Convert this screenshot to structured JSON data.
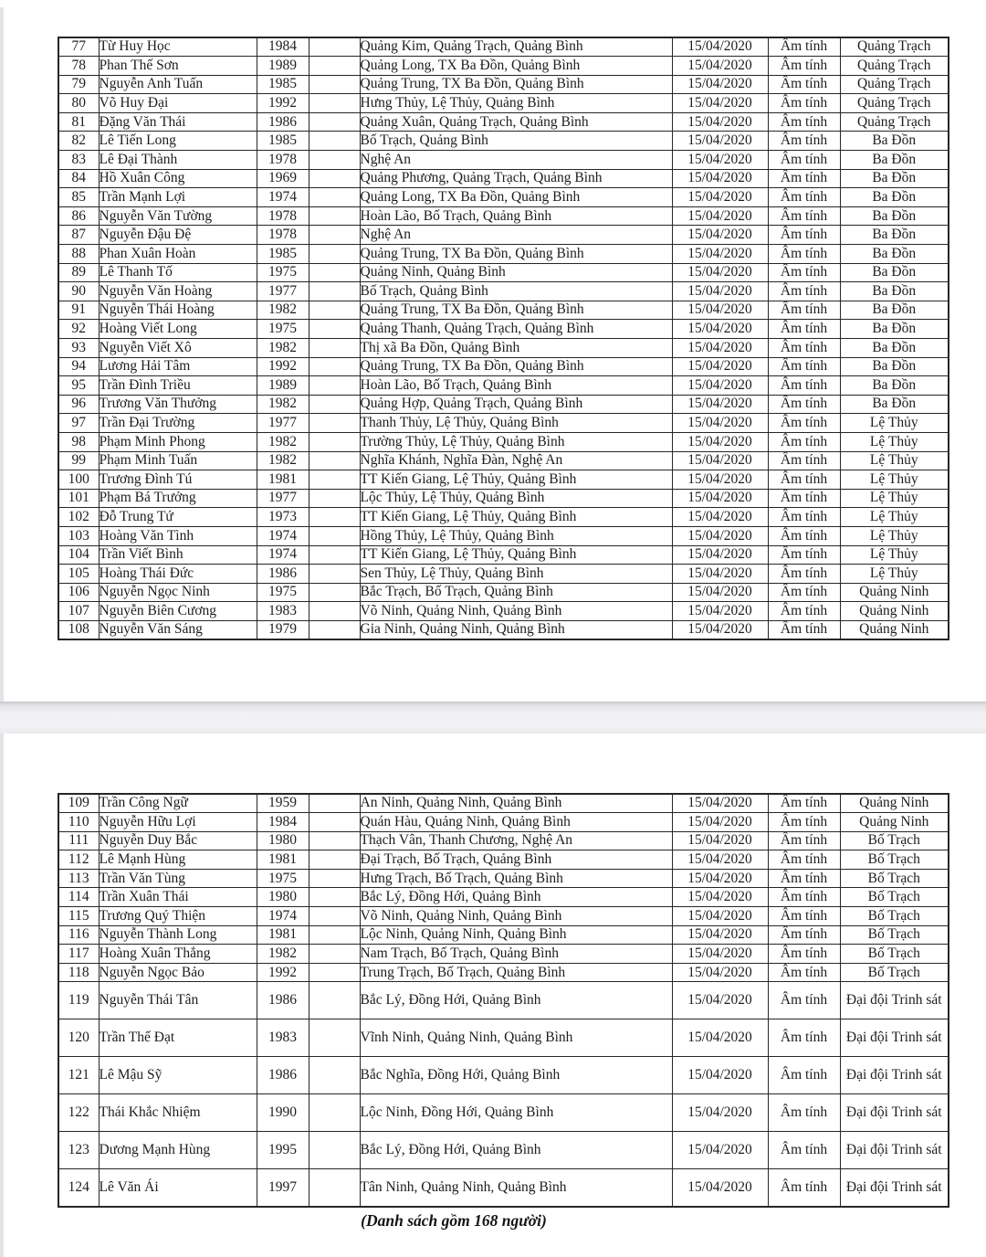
{
  "document": {
    "type": "scanned-roster-table",
    "footer_note": "(Danh sách gồm 168 người)",
    "common": {
      "test_date": "15/04/2020",
      "test_result": "Âm tính"
    },
    "colors": {
      "paper": "#ffffff",
      "ink": "#1d1d1d",
      "border": "#262626",
      "page_break_band": "#f1f1f3"
    }
  },
  "columns": [
    "stt",
    "name",
    "year",
    "empty",
    "address",
    "date",
    "result",
    "unit"
  ],
  "sections": [
    {
      "rows": [
        [
          "77",
          "Từ Huy Học",
          "1984",
          "Quảng Kim, Quảng Trạch, Quảng Bình",
          "15/04/2020",
          "Âm tính",
          "Quảng Trạch",
          false
        ],
        [
          "78",
          "Phan Thế Sơn",
          "1989",
          "Quảng Long, TX Ba Đồn, Quảng Bình",
          "15/04/2020",
          "Âm tính",
          "Quảng Trạch",
          false
        ],
        [
          "79",
          "Nguyễn Anh Tuấn",
          "1985",
          "Quảng Trung, TX Ba Đồn, Quảng Bình",
          "15/04/2020",
          "Âm tính",
          "Quảng Trạch",
          false
        ],
        [
          "80",
          "Võ Huy Đại",
          "1992",
          "Hưng Thủy, Lệ Thủy, Quảng Bình",
          "15/04/2020",
          "Âm tính",
          "Quảng Trạch",
          false
        ],
        [
          "81",
          "Đặng Văn Thái",
          "1986",
          "Quảng Xuân, Quảng Trạch, Quảng Bình",
          "15/04/2020",
          "Âm tính",
          "Quảng Trạch",
          false
        ],
        [
          "82",
          "Lê Tiến Long",
          "1985",
          "Bố Trạch, Quảng Bình",
          "15/04/2020",
          "Âm tính",
          "Ba Đồn",
          false
        ],
        [
          "83",
          "Lê Đại Thành",
          "1978",
          "Nghệ An",
          "15/04/2020",
          "Âm tính",
          "Ba Đồn",
          false
        ],
        [
          "84",
          "Hồ Xuân Công",
          "1969",
          "Quảng Phương, Quảng Trạch, Quảng Bình",
          "15/04/2020",
          "Âm tính",
          "Ba Đồn",
          false
        ],
        [
          "85",
          "Trần Mạnh Lợi",
          "1974",
          "Quảng Long, TX Ba Đồn, Quảng Bình",
          "15/04/2020",
          "Âm tính",
          "Ba Đồn",
          false
        ],
        [
          "86",
          "Nguyễn Văn Tường",
          "1978",
          "Hoàn Lão, Bố Trạch, Quảng Bình",
          "15/04/2020",
          "Âm tính",
          "Ba Đồn",
          false
        ],
        [
          "87",
          "Nguyễn Đậu Đệ",
          "1978",
          "Nghệ An",
          "15/04/2020",
          "Âm tính",
          "Ba Đồn",
          false
        ],
        [
          "88",
          "Phan Xuân Hoàn",
          "1985",
          "Quảng Trung, TX Ba Đồn, Quảng Bình",
          "15/04/2020",
          "Âm tính",
          "Ba Đồn",
          false
        ],
        [
          "89",
          "Lê Thanh Tố",
          "1975",
          "Quảng Ninh, Quảng Bình",
          "15/04/2020",
          "Âm tính",
          "Ba Đồn",
          false
        ],
        [
          "90",
          "Nguyễn Văn Hoàng",
          "1977",
          "Bố Trạch, Quảng Bình",
          "15/04/2020",
          "Âm tính",
          "Ba Đồn",
          false
        ],
        [
          "91",
          "Nguyễn Thái Hoàng",
          "1982",
          "Quảng Trung, TX Ba Đồn, Quảng Bình",
          "15/04/2020",
          "Âm tính",
          "Ba Đồn",
          false
        ],
        [
          "92",
          "Hoàng Viết Long",
          "1975",
          "Quảng Thanh, Quảng Trạch, Quảng Bình",
          "15/04/2020",
          "Âm tính",
          "Ba Đồn",
          false
        ],
        [
          "93",
          "Nguyễn Viết Xô",
          "1982",
          "Thị xã Ba Đồn, Quảng Bình",
          "15/04/2020",
          "Âm tính",
          "Ba Đồn",
          false
        ],
        [
          "94",
          "Lương Hải Tâm",
          "1992",
          "Quảng Trung, TX Ba Đồn, Quảng Bình",
          "15/04/2020",
          "Âm tính",
          "Ba Đồn",
          false
        ],
        [
          "95",
          "Trần Đình Triều",
          "1989",
          "Hoàn Lão, Bố Trạch, Quảng Bình",
          "15/04/2020",
          "Âm tính",
          "Ba Đồn",
          false
        ],
        [
          "96",
          "Trương Văn Thưởng",
          "1982",
          "Quảng Hợp, Quảng Trạch, Quảng Bình",
          "15/04/2020",
          "Âm tính",
          "Ba Đồn",
          false
        ],
        [
          "97",
          "Trần Đại Trường",
          "1977",
          "Thanh Thủy, Lệ Thủy, Quảng Bình",
          "15/04/2020",
          "Âm tính",
          "Lệ Thủy",
          false
        ],
        [
          "98",
          "Phạm Minh Phong",
          "1982",
          "Trường Thủy, Lệ Thủy, Quảng Bình",
          "15/04/2020",
          "Âm tính",
          "Lệ Thủy",
          false
        ],
        [
          "99",
          "Phạm Minh Tuấn",
          "1982",
          "Nghĩa Khánh, Nghĩa Đàn, Nghệ An",
          "15/04/2020",
          "Âm tính",
          "Lệ Thủy",
          false
        ],
        [
          "100",
          "Trương Đình Tú",
          "1981",
          "TT Kiến Giang, Lệ Thủy, Quảng Bình",
          "15/04/2020",
          "Âm tính",
          "Lệ Thủy",
          false
        ],
        [
          "101",
          "Phạm Bá Trưởng",
          "1977",
          "Lộc Thủy, Lệ Thủy, Quảng Bình",
          "15/04/2020",
          "Âm tính",
          "Lệ Thủy",
          false
        ],
        [
          "102",
          "Đỗ Trung Tứ",
          "1973",
          "TT Kiến Giang, Lệ Thủy, Quảng Bình",
          "15/04/2020",
          "Âm tính",
          "Lệ Thủy",
          false
        ],
        [
          "103",
          "Hoàng Văn Tình",
          "1974",
          "Hồng Thủy, Lệ Thủy, Quảng Bình",
          "15/04/2020",
          "Âm tính",
          "Lệ Thủy",
          false
        ],
        [
          "104",
          "Trần Viết Bình",
          "1974",
          "TT Kiến Giang, Lệ Thủy, Quảng Bình",
          "15/04/2020",
          "Âm tính",
          "Lệ Thủy",
          false
        ],
        [
          "105",
          "Hoàng Thái Đức",
          "1986",
          "Sen Thủy, Lệ Thủy, Quảng Bình",
          "15/04/2020",
          "Âm tính",
          "Lệ Thủy",
          false
        ],
        [
          "106",
          "Nguyễn Ngọc Ninh",
          "1975",
          "Bắc Trạch, Bố Trạch, Quảng Bình",
          "15/04/2020",
          "Âm tính",
          "Quảng Ninh",
          false
        ],
        [
          "107",
          "Nguyễn Biên Cương",
          "1983",
          "Võ Ninh, Quảng Ninh, Quảng Bình",
          "15/04/2020",
          "Âm tính",
          "Quảng Ninh",
          false
        ],
        [
          "108",
          "Nguyễn Văn Sáng",
          "1979",
          "Gia Ninh, Quảng Ninh, Quảng Bình",
          "15/04/2020",
          "Âm tính",
          "Quảng Ninh",
          false
        ]
      ]
    },
    {
      "rows": [
        [
          "109",
          "Trần Công Ngữ",
          "1959",
          "An Ninh, Quảng Ninh, Quảng Bình",
          "15/04/2020",
          "Âm tính",
          "Quảng Ninh",
          false
        ],
        [
          "110",
          "Nguyễn Hữu Lợi",
          "1984",
          "Quán Hàu, Quảng Ninh, Quảng Bình",
          "15/04/2020",
          "Âm tính",
          "Quảng Ninh",
          false
        ],
        [
          "111",
          "Nguyễn Duy Bắc",
          "1980",
          "Thạch Vân, Thanh Chương, Nghệ An",
          "15/04/2020",
          "Âm tính",
          "Bố Trạch",
          false
        ],
        [
          "112",
          "Lê Mạnh Hùng",
          "1981",
          "Đại Trạch, Bố Trạch, Quảng Bình",
          "15/04/2020",
          "Âm tính",
          "Bố Trạch",
          false
        ],
        [
          "113",
          "Trần Văn Tùng",
          "1975",
          "Hưng Trạch, Bố Trạch, Quảng Bình",
          "15/04/2020",
          "Âm tính",
          "Bố Trạch",
          false
        ],
        [
          "114",
          "Trần Xuân Thái",
          "1980",
          "Bắc Lý, Đồng Hới, Quảng Bình",
          "15/04/2020",
          "Âm tính",
          "Bố Trạch",
          false
        ],
        [
          "115",
          "Trương Quý Thiện",
          "1974",
          "Võ Ninh, Quảng Ninh, Quảng Bình",
          "15/04/2020",
          "Âm tính",
          "Bố Trạch",
          false
        ],
        [
          "116",
          "Nguyễn Thành Long",
          "1981",
          "Lộc Ninh, Quảng Ninh, Quảng Bình",
          "15/04/2020",
          "Âm tính",
          "Bố Trạch",
          false
        ],
        [
          "117",
          "Hoàng Xuân Thắng",
          "1982",
          "Nam Trạch, Bố Trạch, Quảng Bình",
          "15/04/2020",
          "Âm tính",
          "Bố Trạch",
          false
        ],
        [
          "118",
          "Nguyễn Ngọc Bảo",
          "1992",
          "Trung Trạch, Bố Trạch, Quảng Bình",
          "15/04/2020",
          "Âm tính",
          "Bố Trạch",
          false
        ],
        [
          "119",
          "Nguyễn Thái Tân",
          "1986",
          "Bắc Lý, Đồng Hới, Quảng Bình",
          "15/04/2020",
          "Âm tính",
          "Đại đội Trinh sát",
          true
        ],
        [
          "120",
          "Trần Thế Đạt",
          "1983",
          "Vĩnh Ninh, Quảng Ninh, Quảng Bình",
          "15/04/2020",
          "Âm tính",
          "Đại đội Trinh sát",
          true
        ],
        [
          "121",
          "Lê Mậu Sỹ",
          "1986",
          "Bắc Nghĩa, Đồng Hới, Quảng Bình",
          "15/04/2020",
          "Âm tính",
          "Đại đội Trinh sát",
          true
        ],
        [
          "122",
          "Thái Khắc Nhiệm",
          "1990",
          "Lộc Ninh, Đồng Hới, Quảng Bình",
          "15/04/2020",
          "Âm tính",
          "Đại đội Trinh sát",
          true
        ],
        [
          "123",
          "Dương Mạnh Hùng",
          "1995",
          "Bắc Lý, Đồng Hới, Quảng Bình",
          "15/04/2020",
          "Âm tính",
          "Đại đội Trinh sát",
          true
        ],
        [
          "124",
          "Lê Văn Ái",
          "1997",
          "Tân Ninh, Quảng Ninh, Quảng Bình",
          "15/04/2020",
          "Âm tính",
          "Đại đội Trinh sát",
          true
        ]
      ]
    }
  ]
}
